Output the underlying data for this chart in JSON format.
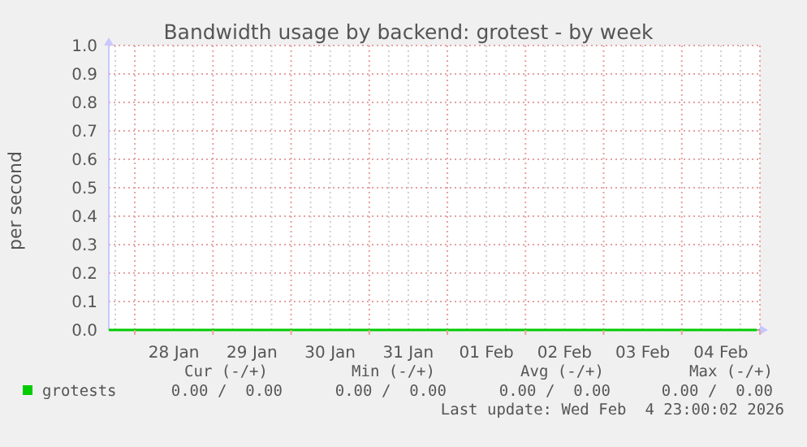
{
  "chart_data": {
    "type": "line",
    "title": "Bandwidth usage by backend: grotest - by week",
    "ylabel": "per second",
    "xlim": [
      "2026-01-27T16:00",
      "2026-02-05T00:00"
    ],
    "xticks": [
      {
        "value": "2026-01-27T18:00",
        "label": null
      },
      {
        "value": "2026-01-28T00:00",
        "label": null
      },
      {
        "value": "2026-01-28T06:00",
        "label": null
      },
      {
        "value": "2026-01-28T12:00",
        "label": "28 Jan"
      },
      {
        "value": "2026-01-28T18:00",
        "label": null
      },
      {
        "value": "2026-01-29T00:00",
        "label": null
      },
      {
        "value": "2026-01-29T06:00",
        "label": null
      },
      {
        "value": "2026-01-29T12:00",
        "label": "29 Jan"
      },
      {
        "value": "2026-01-29T18:00",
        "label": null
      },
      {
        "value": "2026-01-30T00:00",
        "label": null
      },
      {
        "value": "2026-01-30T06:00",
        "label": null
      },
      {
        "value": "2026-01-30T12:00",
        "label": "30 Jan"
      },
      {
        "value": "2026-01-30T18:00",
        "label": null
      },
      {
        "value": "2026-01-31T00:00",
        "label": null
      },
      {
        "value": "2026-01-31T06:00",
        "label": null
      },
      {
        "value": "2026-01-31T12:00",
        "label": "31 Jan"
      },
      {
        "value": "2026-01-31T18:00",
        "label": null
      },
      {
        "value": "2026-02-01T00:00",
        "label": null
      },
      {
        "value": "2026-02-01T06:00",
        "label": null
      },
      {
        "value": "2026-02-01T12:00",
        "label": "01 Feb"
      },
      {
        "value": "2026-02-01T18:00",
        "label": null
      },
      {
        "value": "2026-02-02T00:00",
        "label": null
      },
      {
        "value": "2026-02-02T06:00",
        "label": null
      },
      {
        "value": "2026-02-02T12:00",
        "label": "02 Feb"
      },
      {
        "value": "2026-02-02T18:00",
        "label": null
      },
      {
        "value": "2026-02-03T00:00",
        "label": null
      },
      {
        "value": "2026-02-03T06:00",
        "label": null
      },
      {
        "value": "2026-02-03T12:00",
        "label": "03 Feb"
      },
      {
        "value": "2026-02-03T18:00",
        "label": null
      },
      {
        "value": "2026-02-04T00:00",
        "label": null
      },
      {
        "value": "2026-02-04T06:00",
        "label": null
      },
      {
        "value": "2026-02-04T12:00",
        "label": "04 Feb"
      },
      {
        "value": "2026-02-04T18:00",
        "label": null
      },
      {
        "value": "2026-02-05T00:00",
        "label": null
      }
    ],
    "ylim": [
      0,
      1
    ],
    "yticks": [
      {
        "value": 0,
        "label": "0.0"
      },
      0.1,
      0.2,
      0.3,
      0.4,
      0.5,
      0.6,
      0.7,
      0.8,
      0.9,
      {
        "value": 1,
        "label": "1.0"
      }
    ],
    "grid": true,
    "legend": "bottom left",
    "marker": "none",
    "line_style": "solid",
    "series": [
      {
        "name": "grotests",
        "color": "#00cc00",
        "x": [
          "2026-01-27T16:00",
          "2026-02-04T23:00"
        ],
        "values": [
          0,
          0
        ]
      }
    ],
    "annotations": [
      "Cur (-/+)",
      "Min (-/+)",
      "Avg (-/+)",
      "Max (-/+)",
      "0.00 /  0.00",
      "0.00 /  0.00",
      "0.00 /  0.00",
      "0.00 /  0.00",
      "Last update: Wed Feb  4 23:00:02 2026"
    ]
  }
}
